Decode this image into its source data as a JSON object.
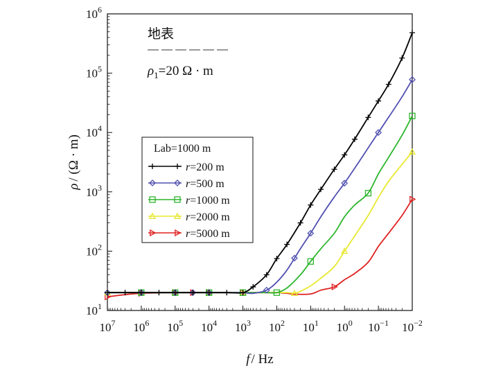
{
  "chart_data": {
    "type": "line",
    "xlabel_italic": "f",
    "xlabel_unit": "/ Hz",
    "ylabel_italic": "ρ",
    "ylabel_unit": "/ (Ω · m)",
    "x_ticks": [
      {
        "b": "10",
        "e": "7",
        "v": 10000000.0
      },
      {
        "b": "10",
        "e": "6",
        "v": 1000000.0
      },
      {
        "b": "10",
        "e": "5",
        "v": 100000.0
      },
      {
        "b": "10",
        "e": "4",
        "v": 10000.0
      },
      {
        "b": "10",
        "e": "3",
        "v": 1000.0
      },
      {
        "b": "10",
        "e": "2",
        "v": 100.0
      },
      {
        "b": "10",
        "e": "1",
        "v": 10.0
      },
      {
        "b": "10",
        "e": "0",
        "v": 1
      },
      {
        "b": "10",
        "e": "−1",
        "v": 0.1
      },
      {
        "b": "10",
        "e": "−2",
        "v": 0.01
      }
    ],
    "y_ticks": [
      {
        "b": "10",
        "e": "1",
        "v": 10
      },
      {
        "b": "10",
        "e": "2",
        "v": 100
      },
      {
        "b": "10",
        "e": "3",
        "v": 1000
      },
      {
        "b": "10",
        "e": "4",
        "v": 10000
      },
      {
        "b": "10",
        "e": "5",
        "v": 100000
      },
      {
        "b": "10",
        "e": "6",
        "v": 1000000
      }
    ],
    "x_scale": "log, reversed (decreasing frequency to the right)",
    "y_scale": "log",
    "xlim": [
      10000000,
      0.01
    ],
    "ylim": [
      10,
      1000000
    ],
    "grid": false,
    "legend": {
      "placement": "center-left",
      "title": "Lab=1000 m",
      "entries": [
        {
          "italic": "r",
          "text": "=200 m"
        },
        {
          "italic": "r",
          "text": "=500 m"
        },
        {
          "italic": "r",
          "text": "=1000 m"
        },
        {
          "italic": "r",
          "text": "=2000 m"
        },
        {
          "italic": "r",
          "text": "=5000 m"
        }
      ]
    },
    "annotation": {
      "title": "地表",
      "rho_symbol": "ρ",
      "rho_sub": "1",
      "rho_value": "=20 Ω · m"
    },
    "series": [
      {
        "r_m": 200,
        "color": "#000000",
        "marker": "plus",
        "points": [
          [
            10000000.0,
            20
          ],
          [
            3000000.0,
            20
          ],
          [
            1000000.0,
            20
          ],
          [
            300000.0,
            20
          ],
          [
            100000.0,
            20
          ],
          [
            30000.0,
            20
          ],
          [
            10000.0,
            20
          ],
          [
            3000.0,
            20
          ],
          [
            1000.0,
            20
          ],
          [
            500.0,
            25
          ],
          [
            200.0,
            40
          ],
          [
            100.0,
            75
          ],
          [
            50.0,
            130
          ],
          [
            20.0,
            300
          ],
          [
            10.0,
            600
          ],
          [
            5,
            1100
          ],
          [
            2,
            2400
          ],
          [
            1,
            4200
          ],
          [
            0.5,
            7700
          ],
          [
            0.2,
            18000
          ],
          [
            0.1,
            34000
          ],
          [
            0.05,
            65000
          ],
          [
            0.02,
            180000
          ],
          [
            0.01,
            480000
          ]
        ],
        "markers_x": [
          10000000.0,
          3000000.0,
          1000000.0,
          300000.0,
          100000.0,
          30000.0,
          10000.0,
          3000.0,
          1000.0,
          500.0,
          200.0,
          100.0,
          50.0,
          20.0,
          10.0,
          5,
          2,
          1,
          0.5,
          0.2,
          0.1,
          0.05,
          0.02,
          0.01
        ]
      },
      {
        "r_m": 500,
        "color": "#5050b0",
        "marker": "diamond",
        "points": [
          [
            10000000.0,
            20
          ],
          [
            3000000.0,
            20
          ],
          [
            1000000.0,
            20
          ],
          [
            300000.0,
            20
          ],
          [
            100000.0,
            20
          ],
          [
            30000.0,
            20
          ],
          [
            10000.0,
            20
          ],
          [
            3000.0,
            20
          ],
          [
            1000.0,
            20
          ],
          [
            500.0,
            19.5
          ],
          [
            200.0,
            22
          ],
          [
            100.0,
            30
          ],
          [
            50.0,
            48
          ],
          [
            20.0,
            110
          ],
          [
            10.0,
            200
          ],
          [
            5,
            380
          ],
          [
            2,
            820
          ],
          [
            1,
            1400
          ],
          [
            0.5,
            2500
          ],
          [
            0.2,
            5500
          ],
          [
            0.1,
            10000
          ],
          [
            0.05,
            18000
          ],
          [
            0.02,
            40000
          ],
          [
            0.01,
            78000
          ]
        ],
        "markers_x": [
          10000000.0,
          1000000.0,
          100000.0,
          30000.0,
          10000.0,
          200.0,
          30.0,
          10.0,
          1,
          0.1,
          0.01
        ]
      },
      {
        "r_m": 1000,
        "color": "#2db52d",
        "marker": "square",
        "points": [
          [
            10000000.0,
            20
          ],
          [
            3000000.0,
            20
          ],
          [
            1000000.0,
            20
          ],
          [
            300000.0,
            20
          ],
          [
            100000.0,
            20
          ],
          [
            30000.0,
            20
          ],
          [
            10000.0,
            20
          ],
          [
            3000.0,
            20
          ],
          [
            1000.0,
            20
          ],
          [
            500.0,
            20
          ],
          [
            200.0,
            20
          ],
          [
            100.0,
            20
          ],
          [
            50.0,
            24
          ],
          [
            20.0,
            40
          ],
          [
            10.0,
            67
          ],
          [
            5,
            110
          ],
          [
            2,
            200
          ],
          [
            1,
            380
          ],
          [
            0.5,
            600
          ],
          [
            0.2,
            950
          ],
          [
            0.1,
            2000
          ],
          [
            0.05,
            3800
          ],
          [
            0.02,
            9000
          ],
          [
            0.01,
            19000
          ]
        ],
        "markers_x": [
          1000000.0,
          100000.0,
          10000.0,
          1000.0,
          100.0,
          10.0,
          0.2,
          0.01
        ]
      },
      {
        "r_m": 2000,
        "color": "#e8e830",
        "marker": "triangle-up",
        "points": [
          [
            10000000.0,
            20
          ],
          [
            3000000.0,
            20
          ],
          [
            1000000.0,
            20
          ],
          [
            300000.0,
            20
          ],
          [
            100000.0,
            20
          ],
          [
            30000.0,
            20
          ],
          [
            10000.0,
            20
          ],
          [
            3000.0,
            20
          ],
          [
            1000.0,
            20
          ],
          [
            500.0,
            20
          ],
          [
            200.0,
            20
          ],
          [
            100.0,
            20
          ],
          [
            50.0,
            20
          ],
          [
            30.0,
            19.5
          ],
          [
            20.0,
            21
          ],
          [
            10.0,
            26
          ],
          [
            5,
            35
          ],
          [
            2,
            55
          ],
          [
            1,
            100
          ],
          [
            0.5,
            180
          ],
          [
            0.2,
            400
          ],
          [
            0.1,
            800
          ],
          [
            0.05,
            1500
          ],
          [
            0.02,
            2900
          ],
          [
            0.01,
            4700
          ]
        ],
        "markers_x": [
          10000000.0,
          1000000.0,
          100000.0,
          10000.0,
          1000.0,
          30.0,
          1,
          0.01
        ]
      },
      {
        "r_m": 5000,
        "color": "#e02020",
        "marker": "triangle-right",
        "points": [
          [
            10000000.0,
            17
          ],
          [
            3000000.0,
            18.5
          ],
          [
            1000000.0,
            19.5
          ],
          [
            300000.0,
            19.8
          ],
          [
            100000.0,
            20
          ],
          [
            30000.0,
            20
          ],
          [
            10000.0,
            20
          ],
          [
            3000.0,
            20
          ],
          [
            1000.0,
            20
          ],
          [
            300.0,
            20
          ],
          [
            100.0,
            20
          ],
          [
            50.0,
            19.5
          ],
          [
            30.0,
            18.8
          ],
          [
            10.0,
            19
          ],
          [
            5,
            22
          ],
          [
            2,
            25
          ],
          [
            1,
            33
          ],
          [
            0.5,
            42
          ],
          [
            0.2,
            65
          ],
          [
            0.1,
            120
          ],
          [
            0.05,
            200
          ],
          [
            0.02,
            400
          ],
          [
            0.01,
            750
          ]
        ],
        "markers_x": [
          10000000.0,
          1000000.0,
          100000.0,
          30000.0,
          10000.0,
          1000.0,
          2,
          0.01
        ]
      }
    ]
  }
}
